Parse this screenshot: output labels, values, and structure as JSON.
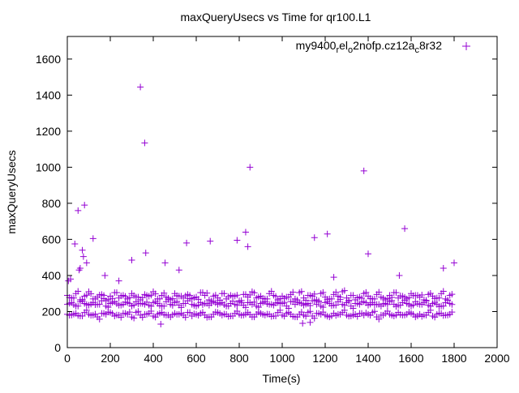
{
  "chart_data": {
    "type": "scatter",
    "title": "maxQueryUsecs vs Time for qr100.L1",
    "xlabel": "Time(s)",
    "ylabel": "maxQueryUsecs",
    "xlim": [
      0,
      2000
    ],
    "ylim": [
      0,
      1725
    ],
    "xticks": [
      0,
      200,
      400,
      600,
      800,
      1000,
      1200,
      1400,
      1600,
      1800,
      2000
    ],
    "yticks": [
      0,
      200,
      400,
      600,
      800,
      1000,
      1200,
      1400,
      1600
    ],
    "grid": false,
    "legend_position": "top-right",
    "series": [
      {
        "name": "my9400_rel_o2nofp.cz12a_c8r32",
        "legend_parts": [
          {
            "text": "my9400",
            "sub": false
          },
          {
            "text": "r",
            "sub": true
          },
          {
            "text": "el",
            "sub": false
          },
          {
            "text": "o",
            "sub": true
          },
          {
            "text": "2nofp.cz12a",
            "sub": false
          },
          {
            "text": "c",
            "sub": true
          },
          {
            "text": "8r32",
            "sub": false
          }
        ],
        "color": "#9400d3",
        "marker": "plus",
        "band_x_start": 0,
        "band_x_step": 20,
        "band_upper": [
          290,
          275,
          300,
          265,
          285,
          310,
          270,
          280,
          295,
          260,
          285,
          305,
          275,
          290,
          270,
          300,
          280,
          265,
          295,
          285,
          310,
          270,
          290,
          280,
          265,
          300,
          285,
          275,
          295,
          270,
          280,
          305,
          290,
          265,
          285,
          275,
          300,
          270,
          290,
          285,
          260,
          295,
          280,
          310,
          275,
          285,
          270,
          300,
          290,
          265,
          285,
          280,
          295,
          270,
          305,
          275,
          290,
          285,
          265,
          300,
          280,
          270,
          295,
          285,
          310,
          275,
          290,
          265,
          280,
          300,
          285,
          270,
          295,
          280,
          265,
          290,
          305,
          275,
          285,
          270,
          300,
          290,
          280,
          265,
          295,
          285,
          275,
          300,
          270,
          290
        ],
        "band_middle": [
          240,
          250,
          230,
          255,
          245,
          235,
          250,
          240,
          260,
          230,
          245,
          255,
          235,
          240,
          250,
          230,
          255,
          245,
          240,
          235,
          250,
          245,
          230,
          255,
          240,
          250,
          235,
          245,
          260,
          240,
          230,
          250,
          245,
          235,
          255,
          240,
          250,
          230,
          245,
          240,
          255,
          235,
          250,
          240,
          230,
          245,
          255,
          240,
          235,
          250,
          245,
          230,
          255,
          240,
          250,
          235,
          245,
          260,
          240,
          230,
          250,
          245,
          235,
          255,
          240,
          250,
          230,
          245,
          240,
          255,
          235,
          250,
          240,
          230,
          245,
          255,
          240,
          235,
          250,
          245,
          230,
          255,
          240,
          250,
          235,
          245,
          240,
          230,
          250,
          245
        ],
        "band_lower": [
          185,
          180,
          190,
          175,
          195,
          185,
          180,
          170,
          190,
          185,
          195,
          175,
          180,
          190,
          185,
          170,
          195,
          180,
          185,
          190,
          175,
          185,
          195,
          180,
          170,
          190,
          185,
          180,
          195,
          175,
          185,
          190,
          180,
          170,
          185,
          195,
          180,
          185,
          175,
          190,
          185,
          180,
          195,
          170,
          185,
          190,
          180,
          185,
          175,
          195,
          180,
          190,
          185,
          170,
          185,
          180,
          195,
          175,
          190,
          185,
          180,
          170,
          190,
          185,
          195,
          180,
          175,
          185,
          190,
          180,
          185,
          195,
          170,
          180,
          190,
          185,
          175,
          195,
          180,
          185,
          190,
          170,
          185,
          180,
          195,
          175,
          185,
          190,
          180,
          185
        ],
        "outliers": [
          [
            5,
            370
          ],
          [
            15,
            380
          ],
          [
            35,
            575
          ],
          [
            50,
            760
          ],
          [
            55,
            430
          ],
          [
            60,
            440
          ],
          [
            70,
            540
          ],
          [
            75,
            505
          ],
          [
            80,
            790
          ],
          [
            90,
            470
          ],
          [
            120,
            605
          ],
          [
            175,
            400
          ],
          [
            240,
            370
          ],
          [
            300,
            485
          ],
          [
            340,
            1445
          ],
          [
            360,
            1135
          ],
          [
            365,
            525
          ],
          [
            435,
            130
          ],
          [
            455,
            470
          ],
          [
            520,
            430
          ],
          [
            555,
            580
          ],
          [
            665,
            590
          ],
          [
            790,
            595
          ],
          [
            830,
            640
          ],
          [
            840,
            560
          ],
          [
            850,
            1000
          ],
          [
            1095,
            135
          ],
          [
            1130,
            140
          ],
          [
            1150,
            610
          ],
          [
            1210,
            630
          ],
          [
            1240,
            390
          ],
          [
            1380,
            980
          ],
          [
            1400,
            520
          ],
          [
            1545,
            400
          ],
          [
            1570,
            660
          ],
          [
            1750,
            440
          ],
          [
            1800,
            470
          ]
        ]
      }
    ]
  }
}
